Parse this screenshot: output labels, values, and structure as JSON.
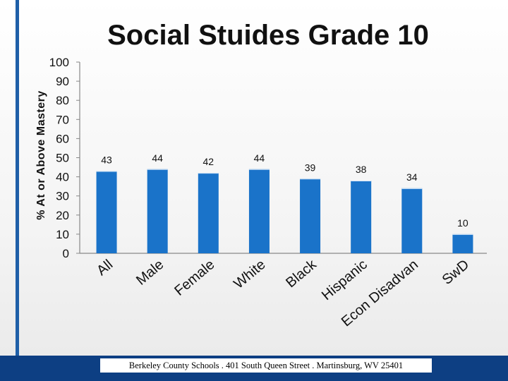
{
  "title": "Social Stuides Grade 10",
  "footer": "Berkeley County Schools . 401 South Queen Street . Martinsburg, WV  25401",
  "colors": {
    "bar": "#1a73c9",
    "accent": "#1f5fa8",
    "footer_band": "#0d3f83"
  },
  "chart_data": {
    "type": "bar",
    "title": "Social Stuides Grade 10",
    "xlabel": "",
    "ylabel": "% At or Above Mastery",
    "ylim": [
      0,
      100
    ],
    "yticks": [
      0,
      10,
      20,
      30,
      40,
      50,
      60,
      70,
      80,
      90,
      100
    ],
    "categories": [
      "All",
      "Male",
      "Female",
      "White",
      "Black",
      "Hispanic",
      "Econ Disadvan",
      "SwD"
    ],
    "values": [
      43,
      44,
      42,
      44,
      39,
      38,
      34,
      10
    ],
    "data_labels": [
      "43",
      "44",
      "42",
      "44",
      "39",
      "38",
      "34",
      "10"
    ],
    "grid": false,
    "legend": "none"
  }
}
